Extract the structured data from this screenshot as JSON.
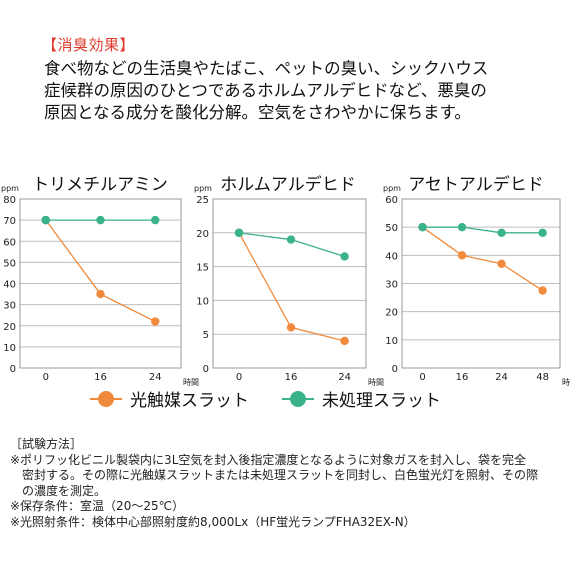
{
  "section_title": "【消臭効果】",
  "description": [
    "食べ物などの生活臭やたばこ、ペットの臭い、シックハウス",
    "症候群の原因のひとつであるホルムアルデヒドなど、悪臭の",
    "原因となる成分を酸化分解。空気をさわやかに保ちます。"
  ],
  "colors": {
    "photocatalyst": "#f08a3c",
    "untreated": "#3bb38a",
    "grid": "#bdbdbd",
    "title": "#e03a2a"
  },
  "chart_data": [
    {
      "type": "line",
      "title": "トリメチルアミン",
      "ylabel": "ppm",
      "xlabel": "時間",
      "x": [
        "0",
        "16",
        "24"
      ],
      "ylim": [
        0,
        80
      ],
      "yticks": [
        0,
        10,
        20,
        30,
        40,
        50,
        60,
        70,
        80
      ],
      "series": [
        {
          "name": "光触媒スラット",
          "values": [
            70,
            35,
            22
          ]
        },
        {
          "name": "未処理スラット",
          "values": [
            70,
            70,
            70
          ]
        }
      ]
    },
    {
      "type": "line",
      "title": "ホルムアルデヒド",
      "ylabel": "ppm",
      "xlabel": "時間",
      "x": [
        "0",
        "16",
        "24"
      ],
      "ylim": [
        0,
        25
      ],
      "yticks": [
        0,
        5,
        10,
        15,
        20,
        25
      ],
      "series": [
        {
          "name": "光触媒スラット",
          "values": [
            20,
            6,
            4
          ]
        },
        {
          "name": "未処理スラット",
          "values": [
            20,
            19,
            16.5
          ]
        }
      ]
    },
    {
      "type": "line",
      "title": "アセトアルデヒド",
      "ylabel": "ppm",
      "xlabel": "時間",
      "x": [
        "0",
        "16",
        "24",
        "48"
      ],
      "ylim": [
        0,
        60
      ],
      "yticks": [
        0,
        10,
        20,
        30,
        40,
        50,
        60
      ],
      "series": [
        {
          "name": "光触媒スラット",
          "values": [
            50,
            40,
            37,
            27.5
          ]
        },
        {
          "name": "未処理スラット",
          "values": [
            50,
            50,
            48,
            48
          ]
        }
      ]
    }
  ],
  "legend": {
    "photocatalyst": "光触媒スラット",
    "untreated": "未処理スラット"
  },
  "method": {
    "heading": "［試験方法］",
    "lines": [
      "※ポリフッ化ビニル製袋内に3L空気を封入後指定濃度となるように対象ガスを封入し、袋を完全",
      "密封する。その際に光触媒スラットまたは未処理スラットを同封し、白色蛍光灯を照射、その際",
      "の濃度を測定。",
      "※保存条件：室温（20～25℃）",
      "※光照射条件：検体中心部照射度約8,000Lx（HF蛍光ランプFHA32EX-N）"
    ]
  }
}
